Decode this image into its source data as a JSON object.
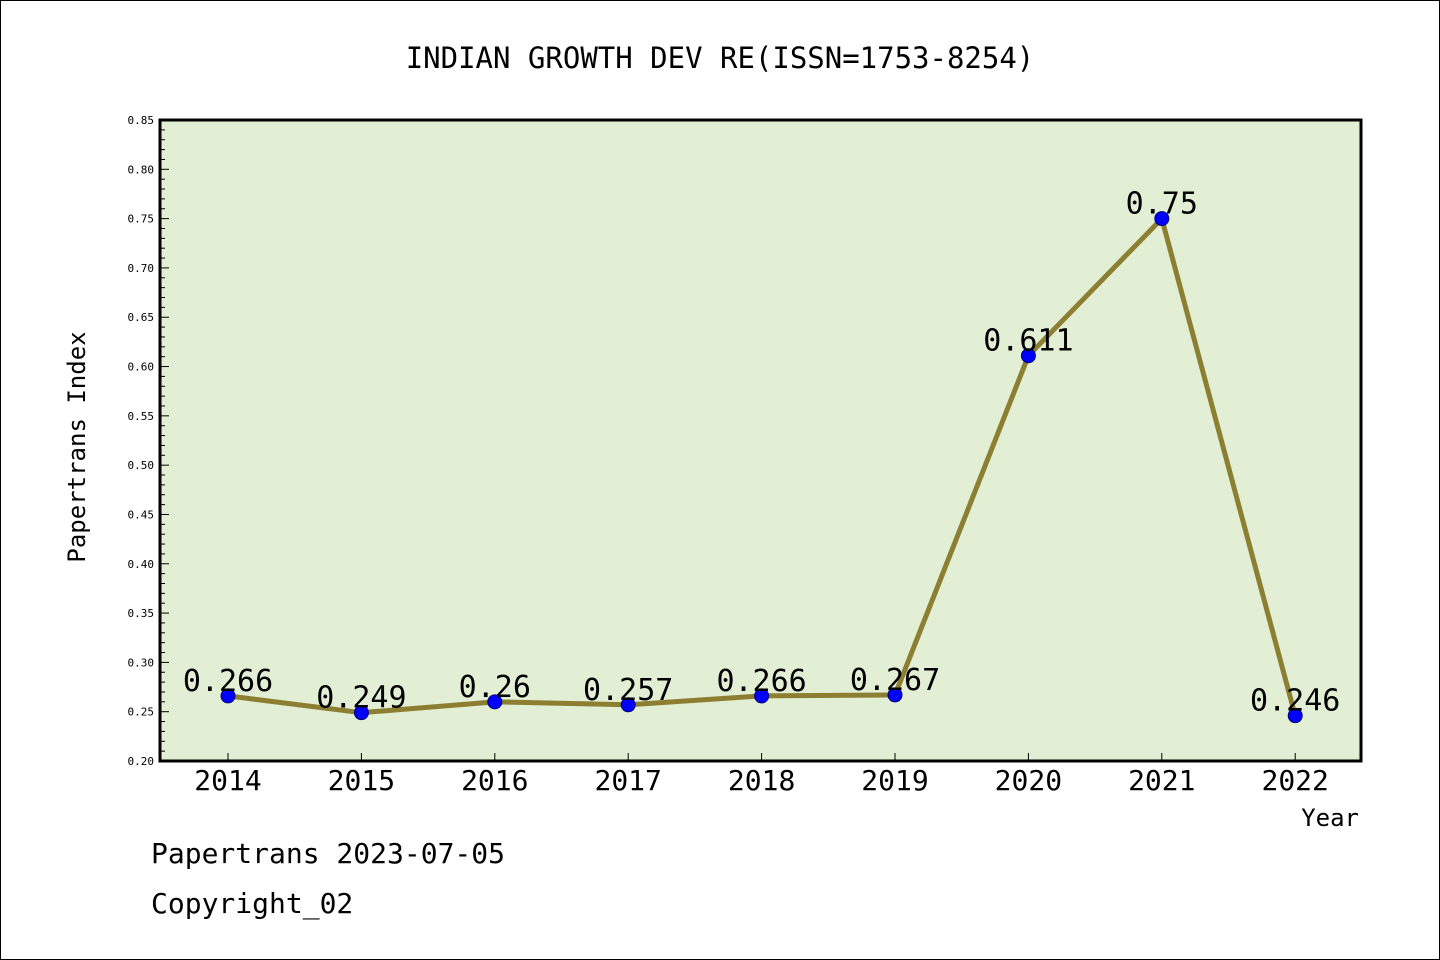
{
  "chart_data": {
    "type": "line",
    "title": "INDIAN GROWTH DEV RE(ISSN=1753-8254)",
    "xlabel": "Year",
    "ylabel": "Papertrans Index",
    "categories": [
      "2014",
      "2015",
      "2016",
      "2017",
      "2018",
      "2019",
      "2020",
      "2021",
      "2022"
    ],
    "series": [
      {
        "values": [
          0.266,
          0.249,
          0.26,
          0.257,
          0.266,
          0.267,
          0.611,
          0.75,
          0.246
        ],
        "data_labels": [
          "0.266",
          "0.249",
          "0.26",
          "0.257",
          "0.266",
          "0.267",
          "0.611",
          "0.75",
          "0.246"
        ],
        "line_color": "#8c7f32",
        "marker_color": "#0000ff"
      }
    ],
    "ylim": [
      0.2,
      0.85
    ],
    "yticks": [
      "0.20",
      "0.25",
      "0.30",
      "0.35",
      "0.40",
      "0.45",
      "0.50",
      "0.55",
      "0.60",
      "0.65",
      "0.70",
      "0.75",
      "0.80",
      "0.85"
    ],
    "grid": false,
    "plot_background": "#e2efd5"
  },
  "footer": {
    "line1": "Papertrans 2023-07-05",
    "line2": "Copyright_02"
  }
}
